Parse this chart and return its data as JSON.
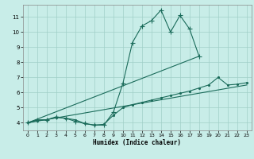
{
  "xlabel": "Humidex (Indice chaleur)",
  "xlim": [
    -0.5,
    23.5
  ],
  "ylim": [
    3.5,
    11.8
  ],
  "yticks": [
    4,
    5,
    6,
    7,
    8,
    9,
    10,
    11
  ],
  "xticks": [
    0,
    1,
    2,
    3,
    4,
    5,
    6,
    7,
    8,
    9,
    10,
    11,
    12,
    13,
    14,
    15,
    16,
    17,
    18,
    19,
    20,
    21,
    22,
    23
  ],
  "bg_color": "#c8ede8",
  "line_color": "#1a6b5a",
  "grid_color": "#a0cfc8",
  "lines": [
    {
      "x": [
        0,
        1,
        2,
        3,
        4,
        5,
        6,
        7,
        8,
        9,
        10,
        11,
        12,
        13,
        14,
        15,
        16,
        17,
        18
      ],
      "y": [
        4.0,
        4.2,
        4.2,
        4.4,
        4.3,
        4.1,
        3.95,
        3.85,
        3.85,
        4.7,
        6.6,
        9.3,
        10.4,
        10.75,
        11.45,
        10.0,
        11.1,
        10.2,
        8.4
      ],
      "marker": "+"
    },
    {
      "x": [
        0,
        1,
        2,
        3,
        4,
        5,
        6,
        7,
        8,
        9,
        10,
        11,
        12,
        13,
        14,
        15,
        16,
        17,
        18,
        19,
        20,
        21,
        22,
        23
      ],
      "y": [
        4.0,
        4.15,
        4.2,
        4.35,
        4.3,
        4.2,
        3.95,
        3.85,
        3.9,
        4.5,
        5.0,
        5.2,
        5.35,
        5.5,
        5.65,
        5.8,
        5.95,
        6.1,
        6.3,
        6.5,
        7.0,
        6.5,
        6.55,
        6.65
      ],
      "marker": "."
    },
    {
      "x": [
        0,
        18
      ],
      "y": [
        4.0,
        8.4
      ],
      "marker": null
    },
    {
      "x": [
        0,
        23
      ],
      "y": [
        4.0,
        6.5
      ],
      "marker": null
    }
  ]
}
